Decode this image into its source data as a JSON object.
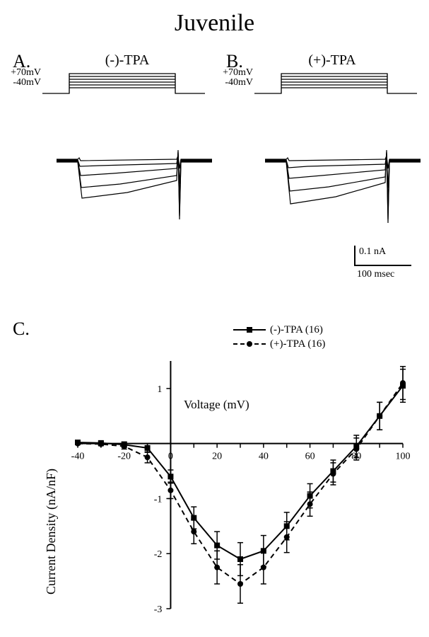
{
  "title": "Juvenile",
  "panelA": {
    "label": "A.",
    "subtitle": "(-)-TPA",
    "v_top": "+70mV",
    "v_bot": "-40mV"
  },
  "panelB": {
    "label": "B.",
    "subtitle": "(+)-TPA",
    "v_top": "+70mV",
    "v_bot": "-40mV"
  },
  "scalebar": {
    "y_label": "0.1 nA",
    "x_label": "100 msec"
  },
  "panelC": {
    "label": "C.",
    "xlabel": "Voltage (mV)",
    "ylabel": "Current Density (nA/nF)",
    "xlim": [
      -40,
      100
    ],
    "ylim": [
      -3,
      1.5
    ],
    "xticks": [
      -40,
      -30,
      -20,
      -10,
      0,
      10,
      20,
      30,
      40,
      50,
      60,
      70,
      80,
      90,
      100
    ],
    "xtick_labels": [
      "-40",
      "",
      "-20",
      "",
      "0",
      "",
      "20",
      "",
      "40",
      "",
      "60",
      "",
      "80",
      "",
      "100"
    ],
    "yticks": [
      -3,
      -2,
      -1,
      0,
      1
    ],
    "ytick_labels": [
      "-3",
      "-2",
      "-1",
      "",
      "1"
    ],
    "legend": [
      {
        "name": "(-)-TPA (16)",
        "marker": "square",
        "dash": "solid"
      },
      {
        "name": "(+)-TPA (16)",
        "marker": "circle",
        "dash": "dash"
      }
    ],
    "series": {
      "minus": {
        "color": "#000000",
        "dash": "solid",
        "marker": "square",
        "x": [
          -40,
          -30,
          -20,
          -10,
          0,
          10,
          20,
          30,
          40,
          50,
          60,
          70,
          80,
          90,
          100
        ],
        "y": [
          0.02,
          0.01,
          -0.02,
          -0.08,
          -0.6,
          -1.35,
          -1.85,
          -2.1,
          -1.95,
          -1.5,
          -0.95,
          -0.5,
          -0.05,
          0.5,
          1.05
        ],
        "err": [
          0.02,
          0.03,
          0.05,
          0.08,
          0.12,
          0.2,
          0.25,
          0.3,
          0.28,
          0.25,
          0.22,
          0.2,
          0.2,
          0.25,
          0.3
        ]
      },
      "plus": {
        "color": "#000000",
        "dash": "dash",
        "marker": "circle",
        "x": [
          -40,
          -30,
          -20,
          -10,
          0,
          10,
          20,
          30,
          40,
          50,
          60,
          70,
          80,
          90,
          100
        ],
        "y": [
          0.0,
          -0.01,
          -0.05,
          -0.25,
          -0.85,
          -1.6,
          -2.25,
          -2.55,
          -2.25,
          -1.7,
          -1.1,
          -0.55,
          -0.1,
          0.5,
          1.1
        ],
        "err": [
          0.02,
          0.03,
          0.05,
          0.1,
          0.15,
          0.22,
          0.3,
          0.35,
          0.3,
          0.28,
          0.22,
          0.2,
          0.2,
          0.25,
          0.3
        ]
      }
    },
    "line_width": 2,
    "marker_size": 7,
    "background": "#ffffff"
  },
  "stimulus": {
    "n_steps": 6,
    "pre_ms": 40,
    "pulse_ms": 200,
    "post_ms": 40
  },
  "traces_note": "schematic current traces, inward Ca currents with tail transient"
}
